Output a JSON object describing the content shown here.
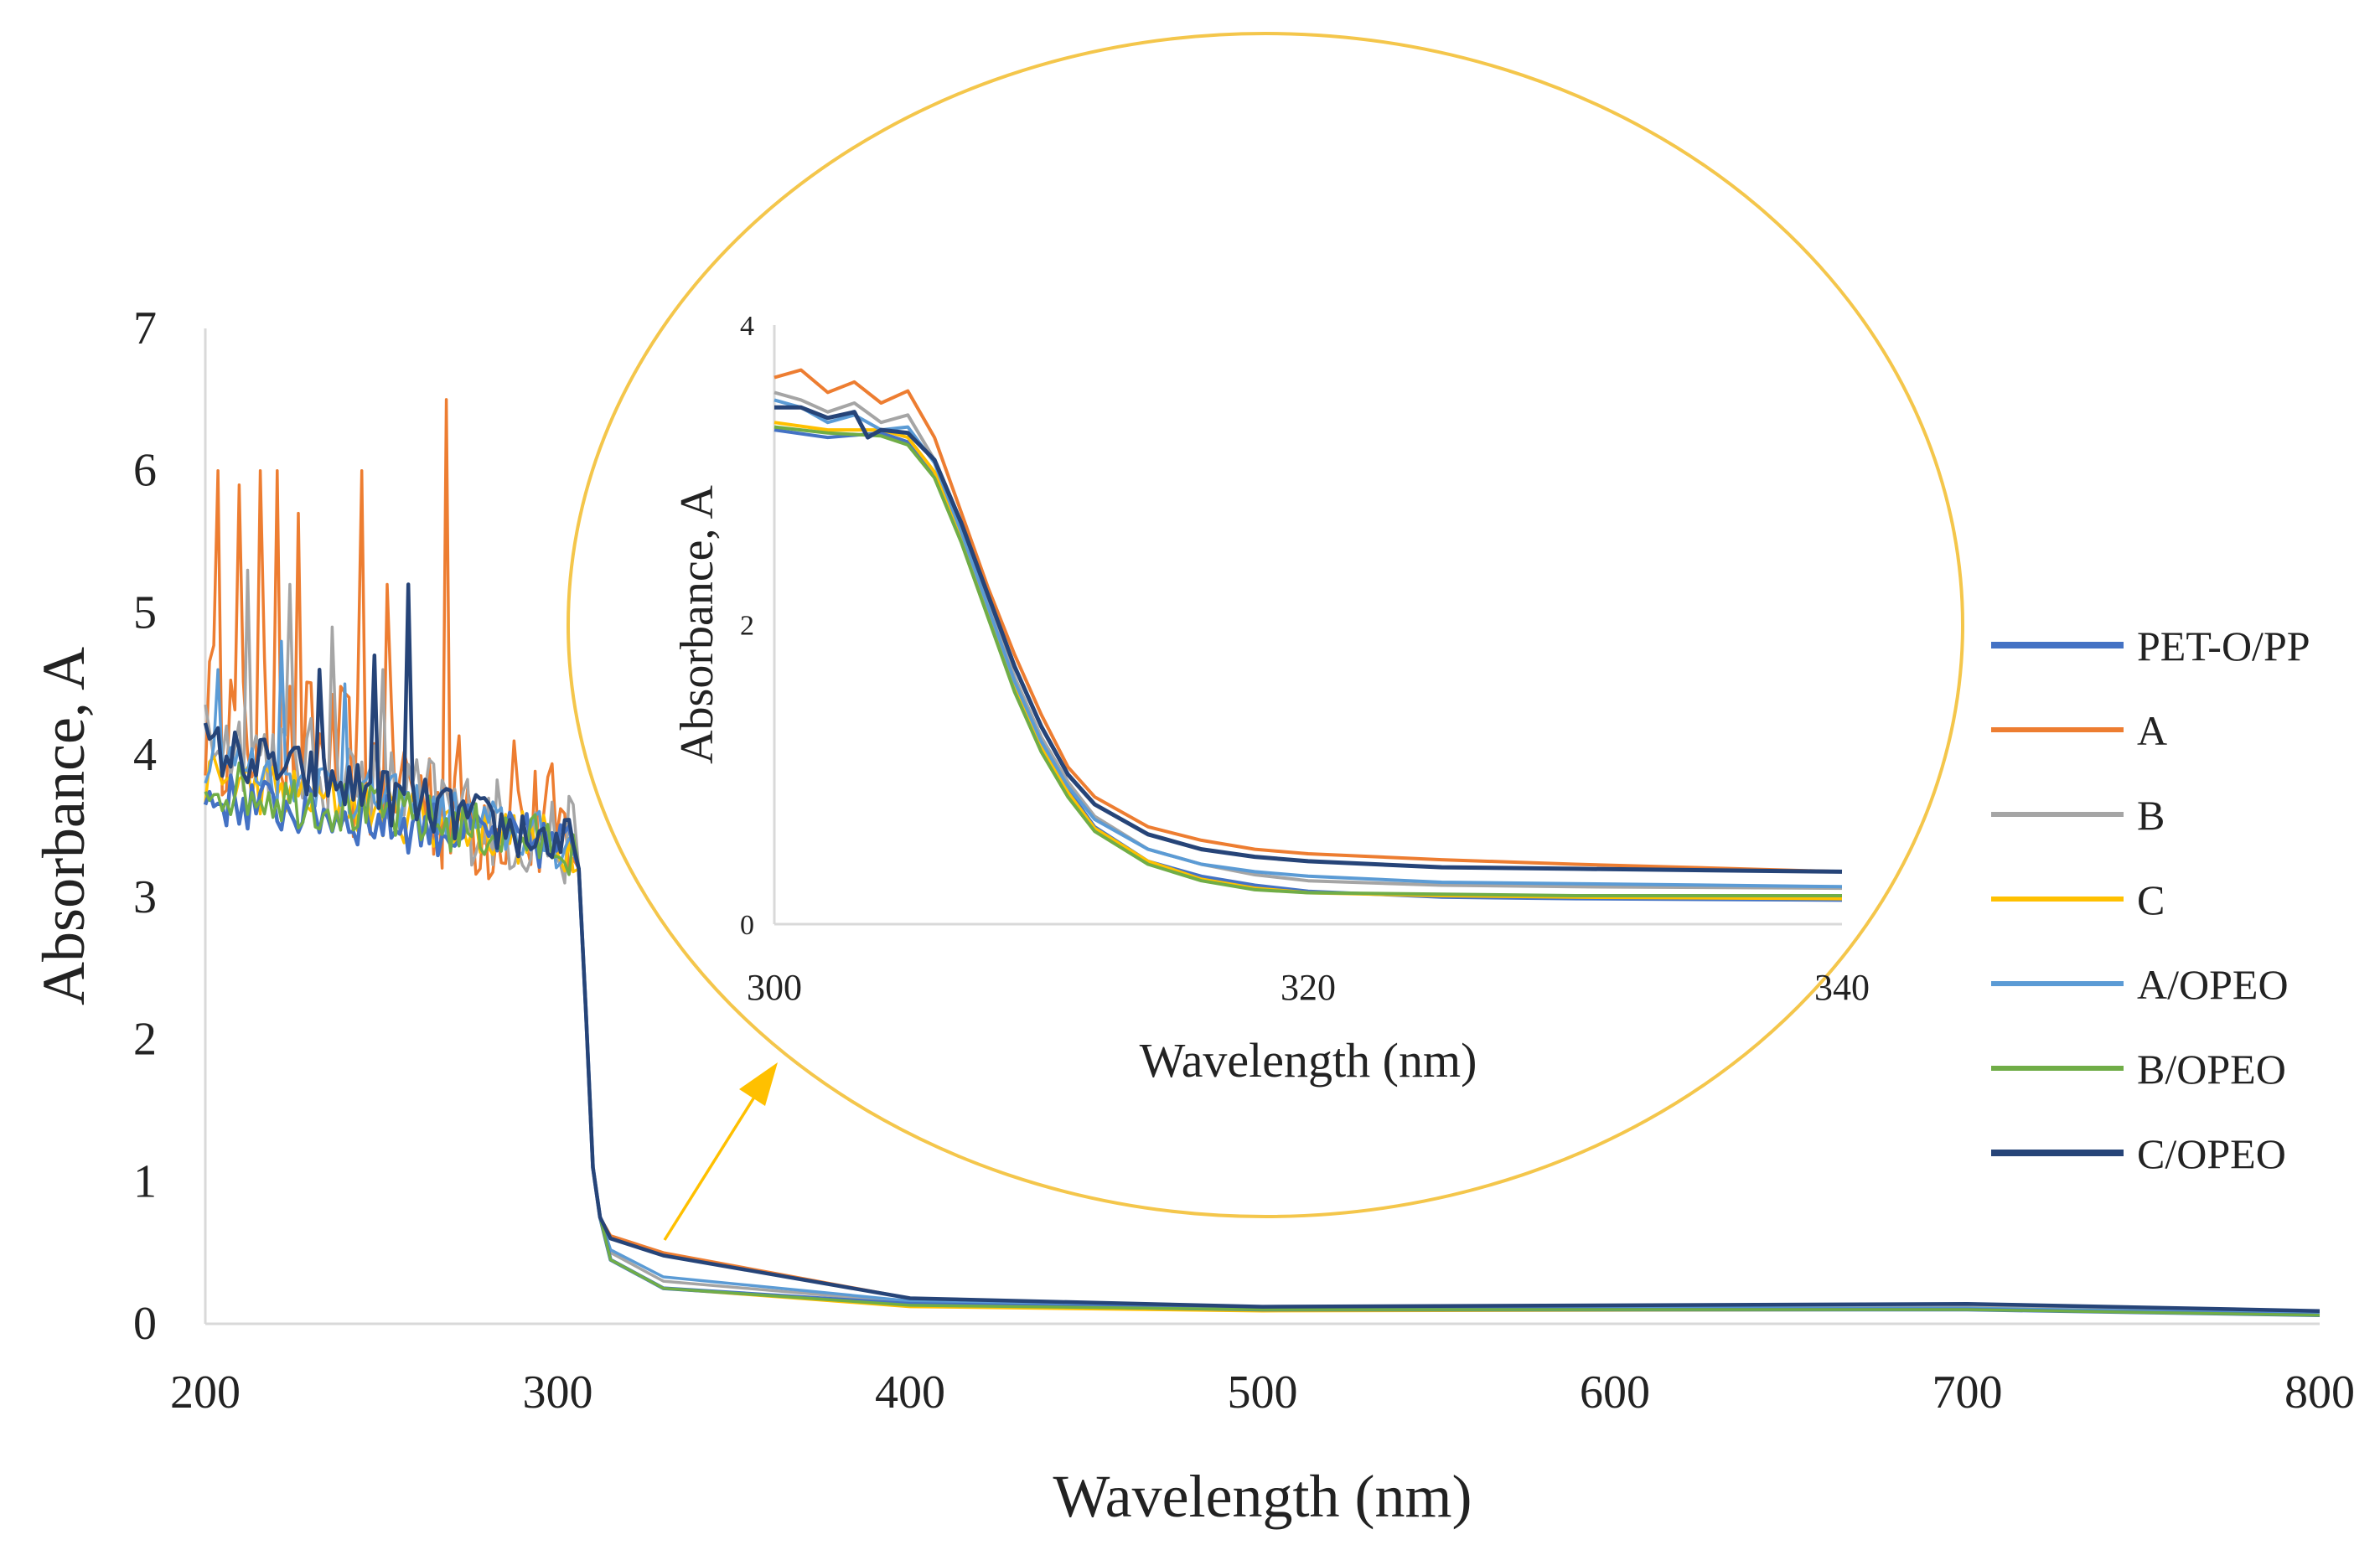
{
  "chart_data": [
    {
      "type": "line",
      "xlabel": "Wavelength (nm)",
      "ylabel": "Absorbance, A",
      "xlim": [
        200,
        800
      ],
      "ylim": [
        0,
        7
      ],
      "xticks": [
        200,
        300,
        400,
        500,
        600,
        700,
        800
      ],
      "yticks": [
        0,
        1,
        2,
        3,
        4,
        5,
        6,
        7
      ],
      "series": [
        {
          "name": "PET-O/PP",
          "color": "#4472C4",
          "base": 3.7,
          "tail": [
            [
              315,
              0.45
            ],
            [
              330,
              0.25
            ],
            [
              400,
              0.14
            ],
            [
              500,
              0.1
            ],
            [
              700,
              0.1
            ],
            [
              800,
              0.06
            ]
          ]
        },
        {
          "name": "A",
          "color": "#ED7D31",
          "base": 4.3,
          "tail": [
            [
              315,
              0.62
            ],
            [
              330,
              0.5
            ],
            [
              400,
              0.18
            ],
            [
              500,
              0.12
            ],
            [
              700,
              0.13
            ],
            [
              800,
              0.08
            ]
          ]
        },
        {
          "name": "B",
          "color": "#A5A5A5",
          "base": 4.15,
          "tail": [
            [
              315,
              0.5
            ],
            [
              330,
              0.3
            ],
            [
              400,
              0.15
            ],
            [
              500,
              0.11
            ],
            [
              700,
              0.12
            ],
            [
              800,
              0.07
            ]
          ]
        },
        {
          "name": "C",
          "color": "#FFC000",
          "base": 3.85,
          "tail": [
            [
              315,
              0.45
            ],
            [
              330,
              0.25
            ],
            [
              400,
              0.12
            ],
            [
              500,
              0.09
            ],
            [
              700,
              0.1
            ],
            [
              800,
              0.06
            ]
          ]
        },
        {
          "name": "A/OPEO",
          "color": "#5B9BD5",
          "base": 4.0,
          "tail": [
            [
              315,
              0.52
            ],
            [
              330,
              0.33
            ],
            [
              400,
              0.16
            ],
            [
              500,
              0.11
            ],
            [
              700,
              0.11
            ],
            [
              800,
              0.07
            ]
          ]
        },
        {
          "name": "B/OPEO",
          "color": "#70AD47",
          "base": 3.8,
          "tail": [
            [
              315,
              0.45
            ],
            [
              330,
              0.25
            ],
            [
              400,
              0.13
            ],
            [
              500,
              0.1
            ],
            [
              700,
              0.1
            ],
            [
              800,
              0.06
            ]
          ]
        },
        {
          "name": "C/OPEO",
          "color": "#264478",
          "base": 4.05,
          "tail": [
            [
              315,
              0.6
            ],
            [
              330,
              0.48
            ],
            [
              400,
              0.18
            ],
            [
              500,
              0.12
            ],
            [
              700,
              0.14
            ],
            [
              800,
              0.09
            ]
          ]
        }
      ]
    },
    {
      "type": "line",
      "xlabel": "Wavelength (nm)",
      "ylabel": "Absorbance, A",
      "xlim": [
        300,
        340
      ],
      "ylim": [
        0,
        4
      ],
      "xticks": [
        300,
        320,
        340
      ],
      "yticks": [
        0,
        2,
        4
      ],
      "series": [
        {
          "name": "PET-O/PP",
          "color": "#4472C4",
          "points": [
            [
              300,
              3.3
            ],
            [
              302,
              3.25
            ],
            [
              304,
              3.28
            ],
            [
              305,
              3.22
            ],
            [
              306,
              3.0
            ],
            [
              307,
              2.6
            ],
            [
              308,
              2.1
            ],
            [
              309,
              1.6
            ],
            [
              310,
              1.2
            ],
            [
              311,
              0.9
            ],
            [
              312,
              0.65
            ],
            [
              314,
              0.42
            ],
            [
              316,
              0.32
            ],
            [
              318,
              0.26
            ],
            [
              320,
              0.22
            ],
            [
              325,
              0.18
            ],
            [
              330,
              0.17
            ],
            [
              340,
              0.16
            ]
          ]
        },
        {
          "name": "A",
          "color": "#ED7D31",
          "points": [
            [
              300,
              3.65
            ],
            [
              301,
              3.7
            ],
            [
              302,
              3.55
            ],
            [
              303,
              3.62
            ],
            [
              304,
              3.48
            ],
            [
              305,
              3.56
            ],
            [
              306,
              3.25
            ],
            [
              307,
              2.75
            ],
            [
              308,
              2.25
            ],
            [
              309,
              1.8
            ],
            [
              310,
              1.4
            ],
            [
              311,
              1.05
            ],
            [
              312,
              0.85
            ],
            [
              314,
              0.65
            ],
            [
              316,
              0.56
            ],
            [
              318,
              0.5
            ],
            [
              320,
              0.47
            ],
            [
              325,
              0.43
            ],
            [
              330,
              0.4
            ],
            [
              340,
              0.35
            ]
          ]
        },
        {
          "name": "B",
          "color": "#A5A5A5",
          "points": [
            [
              300,
              3.55
            ],
            [
              301,
              3.5
            ],
            [
              302,
              3.42
            ],
            [
              303,
              3.48
            ],
            [
              304,
              3.35
            ],
            [
              305,
              3.4
            ],
            [
              306,
              3.1
            ],
            [
              307,
              2.65
            ],
            [
              308,
              2.15
            ],
            [
              309,
              1.65
            ],
            [
              310,
              1.25
            ],
            [
              311,
              0.95
            ],
            [
              312,
              0.72
            ],
            [
              314,
              0.5
            ],
            [
              316,
              0.4
            ],
            [
              318,
              0.33
            ],
            [
              320,
              0.29
            ],
            [
              325,
              0.26
            ],
            [
              330,
              0.25
            ],
            [
              340,
              0.24
            ]
          ]
        },
        {
          "name": "C",
          "color": "#FFC000",
          "points": [
            [
              300,
              3.35
            ],
            [
              302,
              3.3
            ],
            [
              304,
              3.3
            ],
            [
              305,
              3.25
            ],
            [
              306,
              3.02
            ],
            [
              307,
              2.6
            ],
            [
              308,
              2.08
            ],
            [
              309,
              1.58
            ],
            [
              310,
              1.18
            ],
            [
              311,
              0.88
            ],
            [
              312,
              0.64
            ],
            [
              314,
              0.42
            ],
            [
              316,
              0.3
            ],
            [
              318,
              0.24
            ],
            [
              320,
              0.21
            ],
            [
              325,
              0.19
            ],
            [
              330,
              0.18
            ],
            [
              340,
              0.17
            ]
          ]
        },
        {
          "name": "A/OPEO",
          "color": "#5B9BD5",
          "points": [
            [
              300,
              3.5
            ],
            [
              301,
              3.45
            ],
            [
              302,
              3.35
            ],
            [
              303,
              3.4
            ],
            [
              304,
              3.3
            ],
            [
              305,
              3.32
            ],
            [
              306,
              3.08
            ],
            [
              307,
              2.62
            ],
            [
              308,
              2.12
            ],
            [
              309,
              1.62
            ],
            [
              310,
              1.22
            ],
            [
              311,
              0.92
            ],
            [
              312,
              0.7
            ],
            [
              314,
              0.5
            ],
            [
              316,
              0.4
            ],
            [
              318,
              0.35
            ],
            [
              320,
              0.32
            ],
            [
              325,
              0.28
            ],
            [
              330,
              0.27
            ],
            [
              340,
              0.25
            ]
          ]
        },
        {
          "name": "B/OPEO",
          "color": "#70AD47",
          "points": [
            [
              300,
              3.32
            ],
            [
              302,
              3.28
            ],
            [
              304,
              3.26
            ],
            [
              305,
              3.2
            ],
            [
              306,
              2.98
            ],
            [
              307,
              2.55
            ],
            [
              308,
              2.05
            ],
            [
              309,
              1.55
            ],
            [
              310,
              1.15
            ],
            [
              311,
              0.85
            ],
            [
              312,
              0.62
            ],
            [
              314,
              0.4
            ],
            [
              316,
              0.29
            ],
            [
              318,
              0.23
            ],
            [
              320,
              0.21
            ],
            [
              325,
              0.2
            ],
            [
              330,
              0.19
            ],
            [
              340,
              0.19
            ]
          ]
        },
        {
          "name": "C/OPEO",
          "color": "#264478",
          "points": [
            [
              300,
              3.45
            ],
            [
              301,
              3.45
            ],
            [
              302,
              3.38
            ],
            [
              303,
              3.42
            ],
            [
              303.5,
              3.25
            ],
            [
              304,
              3.3
            ],
            [
              305,
              3.28
            ],
            [
              306,
              3.1
            ],
            [
              307,
              2.68
            ],
            [
              308,
              2.2
            ],
            [
              309,
              1.72
            ],
            [
              310,
              1.32
            ],
            [
              311,
              1.0
            ],
            [
              312,
              0.8
            ],
            [
              314,
              0.6
            ],
            [
              316,
              0.5
            ],
            [
              318,
              0.45
            ],
            [
              320,
              0.42
            ],
            [
              325,
              0.38
            ],
            [
              330,
              0.37
            ],
            [
              340,
              0.35
            ]
          ]
        }
      ]
    }
  ]
}
